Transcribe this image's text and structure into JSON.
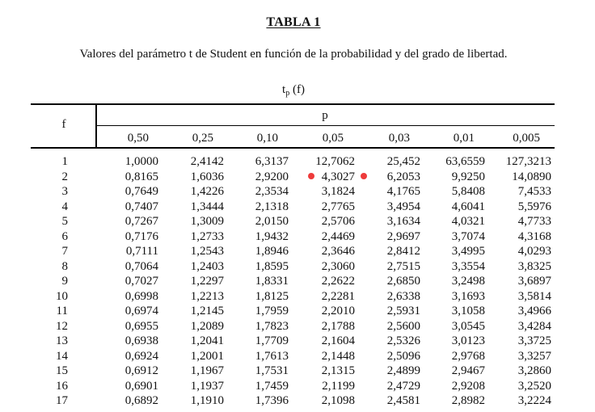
{
  "doc": {
    "title": "TABLA 1",
    "subtitle": "Valores del parámetro t de Student en función de la probabilidad y del grado de libertad.",
    "tp_main": "t",
    "tp_sub": "p",
    "tp_arg": " (f)"
  },
  "table": {
    "row_header": "f",
    "group_header": "p",
    "columns": [
      "0,50",
      "0,25",
      "0,10",
      "0,05",
      "0,03",
      "0,01",
      "0,005"
    ],
    "rows": [
      {
        "f": "1",
        "v": [
          "1,0000",
          "2,4142",
          "6,3137",
          "12,7062",
          "25,452",
          "63,6559",
          "127,3213"
        ]
      },
      {
        "f": "2",
        "v": [
          "0,8165",
          "1,6036",
          "2,9200",
          "4,3027",
          "6,2053",
          "9,9250",
          "14,0890"
        ]
      },
      {
        "f": "3",
        "v": [
          "0,7649",
          "1,4226",
          "2,3534",
          "3,1824",
          "4,1765",
          "5,8408",
          "7,4533"
        ]
      },
      {
        "f": "4",
        "v": [
          "0,7407",
          "1,3444",
          "2,1318",
          "2,7765",
          "3,4954",
          "4,6041",
          "5,5976"
        ]
      },
      {
        "f": "5",
        "v": [
          "0,7267",
          "1,3009",
          "2,0150",
          "2,5706",
          "3,1634",
          "4,0321",
          "4,7733"
        ]
      },
      {
        "f": "6",
        "v": [
          "0,7176",
          "1,2733",
          "1,9432",
          "2,4469",
          "2,9697",
          "3,7074",
          "4,3168"
        ]
      },
      {
        "f": "7",
        "v": [
          "0,7111",
          "1,2543",
          "1,8946",
          "2,3646",
          "2,8412",
          "3,4995",
          "4,0293"
        ]
      },
      {
        "f": "8",
        "v": [
          "0,7064",
          "1,2403",
          "1,8595",
          "2,3060",
          "2,7515",
          "3,3554",
          "3,8325"
        ]
      },
      {
        "f": "9",
        "v": [
          "0,7027",
          "1,2297",
          "1,8331",
          "2,2622",
          "2,6850",
          "3,2498",
          "3,6897"
        ]
      },
      {
        "f": "10",
        "v": [
          "0,6998",
          "1,2213",
          "1,8125",
          "2,2281",
          "2,6338",
          "3,1693",
          "3,5814"
        ]
      },
      {
        "f": "11",
        "v": [
          "0,6974",
          "1,2145",
          "1,7959",
          "2,2010",
          "2,5931",
          "3,1058",
          "3,4966"
        ]
      },
      {
        "f": "12",
        "v": [
          "0,6955",
          "1,2089",
          "1,7823",
          "2,1788",
          "2,5600",
          "3,0545",
          "3,4284"
        ]
      },
      {
        "f": "13",
        "v": [
          "0,6938",
          "1,2041",
          "1,7709",
          "2,1604",
          "2,5326",
          "3,0123",
          "3,3725"
        ]
      },
      {
        "f": "14",
        "v": [
          "0,6924",
          "1,2001",
          "1,7613",
          "2,1448",
          "2,5096",
          "2,9768",
          "3,3257"
        ]
      },
      {
        "f": "15",
        "v": [
          "0,6912",
          "1,1967",
          "1,7531",
          "2,1315",
          "2,4899",
          "2,9467",
          "3,2860"
        ]
      },
      {
        "f": "16",
        "v": [
          "0,6901",
          "1,1937",
          "1,7459",
          "2,1199",
          "2,4729",
          "2,9208",
          "3,2520"
        ]
      },
      {
        "f": "17",
        "v": [
          "0,6892",
          "1,1910",
          "1,7396",
          "2,1098",
          "2,4581",
          "2,8982",
          "3,2224"
        ]
      }
    ]
  },
  "markers": {
    "color": "#ee3b3b",
    "highlighted_cell": {
      "row": "2",
      "column": "0,05"
    }
  }
}
